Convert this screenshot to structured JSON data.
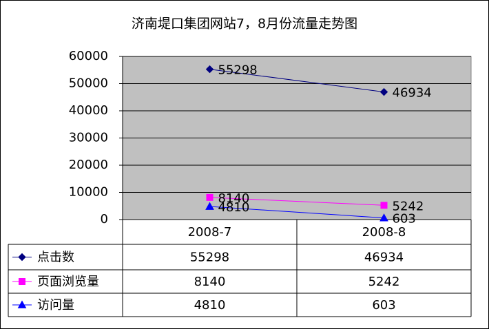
{
  "chart_data": {
    "type": "line",
    "title": "济南堤口集团网站7，8月份流量走势图",
    "categories": [
      "2008-7",
      "2008-8"
    ],
    "ylim": [
      0,
      60000
    ],
    "yticks": [
      "0",
      "10000",
      "20000",
      "30000",
      "40000",
      "50000",
      "60000"
    ],
    "grid": true,
    "plot_background": "#c0c0c0",
    "legend": "data-table-below",
    "series": [
      {
        "name": "点击数",
        "values": [
          55298,
          46934
        ],
        "labels": [
          "55298",
          "46934"
        ],
        "color": "#000080",
        "marker": "diamond"
      },
      {
        "name": "页面浏览量",
        "values": [
          8140,
          5242
        ],
        "labels": [
          "8140",
          "5242"
        ],
        "color": "#ff00ff",
        "marker": "square"
      },
      {
        "name": "访问量",
        "values": [
          4810,
          603
        ],
        "labels": [
          "4810",
          "603"
        ],
        "color": "#0000ff",
        "marker": "triangle"
      }
    ]
  }
}
